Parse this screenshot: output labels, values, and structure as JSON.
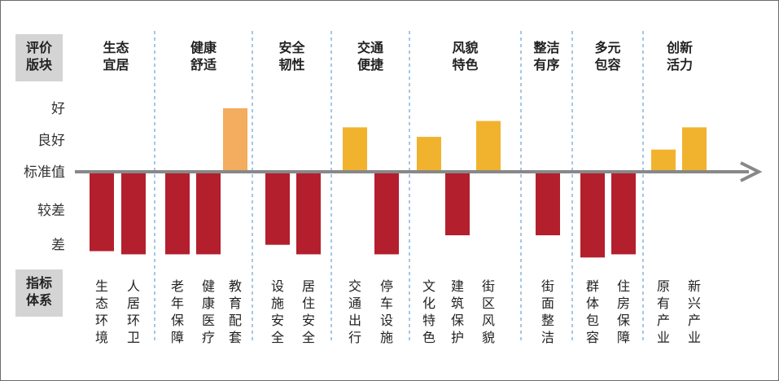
{
  "chart_data": {
    "type": "bar",
    "row_labels": {
      "evaluation": [
        "评价",
        "版块"
      ],
      "indicators": [
        "指标",
        "体系"
      ]
    },
    "y_levels": [
      "好",
      "良好",
      "标准值",
      "较差",
      "差"
    ],
    "categories": [
      {
        "name": [
          "生态",
          "宜居"
        ],
        "indicators": [
          {
            "label": "生态环境",
            "value": -2.5,
            "color": "#b41f2e"
          },
          {
            "label": "人居环卫",
            "value": -2.6,
            "color": "#b41f2e"
          }
        ]
      },
      {
        "name": [
          "健康",
          "舒适"
        ],
        "indicators": [
          {
            "label": "老年保障",
            "value": -2.6,
            "color": "#b41f2e"
          },
          {
            "label": "健康医疗",
            "value": -2.6,
            "color": "#b41f2e"
          },
          {
            "label": "教育配套",
            "value": 2.0,
            "color": "#f4ac5f"
          }
        ]
      },
      {
        "name": [
          "安全",
          "韧性"
        ],
        "indicators": [
          {
            "label": "设施安全",
            "value": -2.3,
            "color": "#b41f2e"
          },
          {
            "label": "居住安全",
            "value": -2.6,
            "color": "#b41f2e"
          }
        ]
      },
      {
        "name": [
          "交通",
          "便捷"
        ],
        "indicators": [
          {
            "label": "交通出行",
            "value": 1.4,
            "color": "#f1b32e"
          },
          {
            "label": "停车设施",
            "value": -2.6,
            "color": "#b41f2e"
          }
        ]
      },
      {
        "name": [
          "风貌",
          "特色"
        ],
        "indicators": [
          {
            "label": "文化特色",
            "value": 1.1,
            "color": "#f1b32e"
          },
          {
            "label": "建筑保护",
            "value": -2.0,
            "color": "#b41f2e"
          },
          {
            "label": "街区风貌",
            "value": 1.6,
            "color": "#f1b32e"
          }
        ]
      },
      {
        "name": [
          "整洁",
          "有序"
        ],
        "indicators": [
          {
            "label": "街面整洁",
            "value": -2.0,
            "color": "#b41f2e"
          }
        ]
      },
      {
        "name": [
          "多元",
          "包容"
        ],
        "indicators": [
          {
            "label": "群体包容",
            "value": -2.7,
            "color": "#b41f2e"
          },
          {
            "label": "住房保障",
            "value": -2.6,
            "color": "#b41f2e"
          }
        ]
      },
      {
        "name": [
          "创新",
          "活力"
        ],
        "indicators": [
          {
            "label": "原有产业",
            "value": 0.7,
            "color": "#f1b32e"
          },
          {
            "label": "新兴产业",
            "value": 1.4,
            "color": "#f1b32e"
          }
        ]
      }
    ],
    "ylim": [
      -2.8,
      2.2
    ],
    "grid": false,
    "colors": {
      "axis": "#888888",
      "label_bg": "#d4d4d4",
      "divider": "#4a8fd1"
    }
  }
}
